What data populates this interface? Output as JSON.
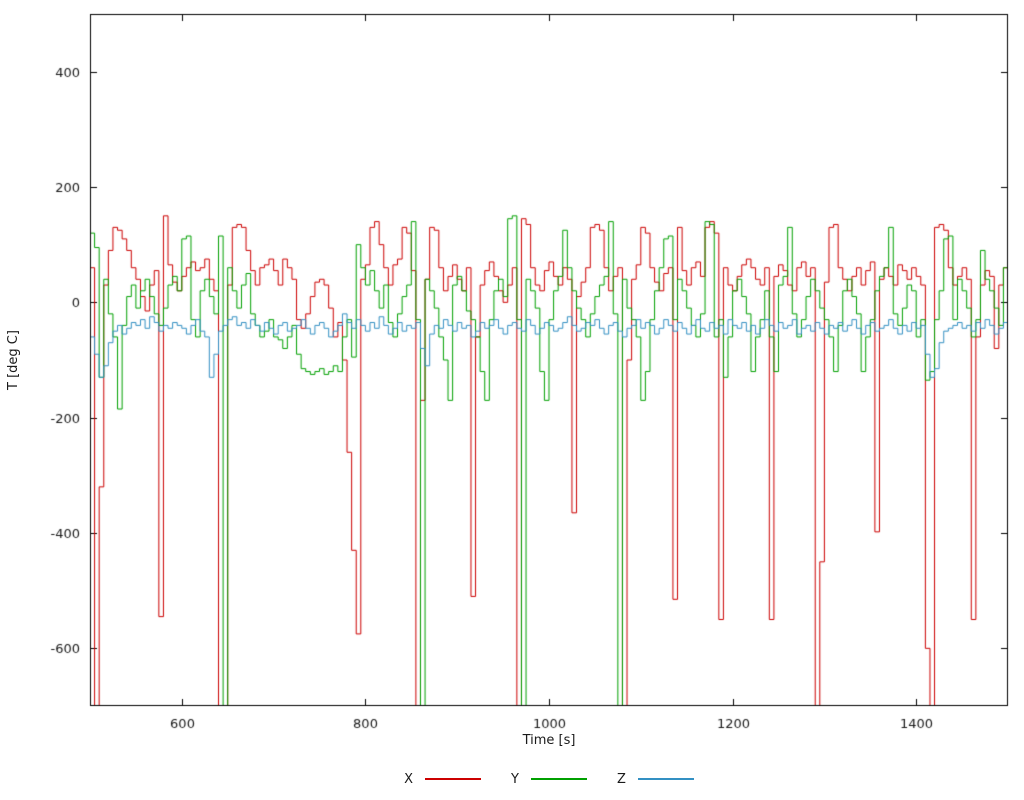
{
  "chart": {
    "xlabel": "Time [s]",
    "ylabel": "T [deg C]",
    "legend": [
      {
        "label": "X",
        "color": "#cc0000"
      },
      {
        "label": "Y",
        "color": "#00a000"
      },
      {
        "label": "Z",
        "color": "#3390c3"
      }
    ],
    "background": "#ffffff",
    "frame_color": "#000000",
    "text_color": "#1a1a1a"
  },
  "chart_data": {
    "type": "line",
    "style": "steps",
    "title": "",
    "xlabel": "Time [s]",
    "ylabel": "T [deg C]",
    "xlim": [
      500,
      1500
    ],
    "ylim": [
      -700,
      500
    ],
    "x_ticks": [
      600,
      800,
      1000,
      1200,
      1400
    ],
    "y_ticks": [
      -600,
      -400,
      -200,
      0,
      200,
      400
    ],
    "grid": false,
    "legend_position": "bottom-center",
    "x": {
      "start": 500,
      "step": 5,
      "count": 201
    },
    "series": [
      {
        "name": "X",
        "color": "#cc0000",
        "values": [
          60,
          -720,
          -320,
          30,
          90,
          130,
          125,
          110,
          90,
          60,
          40,
          10,
          -15,
          30,
          55,
          -545,
          150,
          65,
          35,
          20,
          45,
          60,
          70,
          55,
          60,
          75,
          40,
          20,
          -720,
          -720,
          30,
          130,
          135,
          130,
          90,
          55,
          30,
          60,
          65,
          75,
          55,
          30,
          75,
          60,
          40,
          -30,
          -45,
          -20,
          10,
          35,
          40,
          30,
          -10,
          -60,
          -35,
          -100,
          -260,
          -430,
          -575,
          40,
          65,
          130,
          140,
          100,
          60,
          30,
          65,
          75,
          130,
          120,
          55,
          -720,
          -170,
          40,
          130,
          125,
          60,
          20,
          45,
          65,
          40,
          20,
          60,
          -510,
          -60,
          30,
          55,
          70,
          45,
          20,
          0,
          30,
          60,
          -720,
          145,
          135,
          60,
          30,
          20,
          55,
          70,
          45,
          30,
          60,
          40,
          -365,
          10,
          35,
          60,
          130,
          135,
          125,
          60,
          20,
          45,
          60,
          -720,
          -100,
          40,
          65,
          130,
          120,
          60,
          35,
          20,
          50,
          60,
          -515,
          130,
          55,
          30,
          60,
          70,
          45,
          130,
          140,
          120,
          -550,
          60,
          30,
          20,
          45,
          65,
          75,
          60,
          40,
          30,
          60,
          -550,
          45,
          65,
          55,
          30,
          20,
          60,
          70,
          45,
          60,
          -720,
          -450,
          35,
          130,
          135,
          60,
          40,
          20,
          45,
          60,
          30,
          55,
          70,
          -398,
          40,
          60,
          45,
          30,
          65,
          55,
          40,
          60,
          45,
          30,
          -600,
          -720,
          130,
          135,
          125,
          60,
          30,
          45,
          60,
          40,
          -550,
          -60,
          30,
          55,
          45,
          -80,
          30,
          60,
          75
        ]
      },
      {
        "name": "Y",
        "color": "#00a000",
        "values": [
          120,
          95,
          -130,
          40,
          -20,
          -60,
          -185,
          -40,
          10,
          30,
          -10,
          20,
          40,
          10,
          -20,
          -40,
          -10,
          30,
          45,
          20,
          110,
          115,
          -30,
          -60,
          20,
          40,
          10,
          -20,
          115,
          -720,
          60,
          20,
          -10,
          30,
          50,
          -20,
          -40,
          -60,
          -50,
          -30,
          -60,
          -65,
          -80,
          -60,
          -40,
          -90,
          -115,
          -120,
          -125,
          -120,
          -115,
          -125,
          -120,
          -110,
          -120,
          -60,
          -30,
          -95,
          100,
          60,
          30,
          55,
          20,
          -10,
          30,
          -35,
          -60,
          -20,
          10,
          30,
          140,
          -30,
          -720,
          40,
          20,
          -10,
          -60,
          -100,
          -170,
          30,
          45,
          20,
          -15,
          -30,
          -60,
          -120,
          -170,
          -30,
          20,
          40,
          10,
          145,
          150,
          -30,
          -720,
          40,
          20,
          -10,
          -120,
          -170,
          -30,
          20,
          45,
          125,
          60,
          20,
          -10,
          -30,
          -60,
          -20,
          10,
          30,
          45,
          140,
          -20,
          -720,
          40,
          -10,
          -30,
          -60,
          -170,
          -120,
          -30,
          20,
          60,
          110,
          115,
          -30,
          40,
          20,
          -10,
          -40,
          -60,
          -20,
          140,
          135,
          -60,
          -30,
          -130,
          -60,
          20,
          40,
          10,
          -20,
          -120,
          -60,
          -30,
          20,
          -60,
          -120,
          30,
          45,
          130,
          -20,
          -60,
          -30,
          10,
          40,
          20,
          -10,
          -30,
          -60,
          -120,
          -40,
          20,
          40,
          10,
          -20,
          -120,
          -60,
          -30,
          20,
          45,
          60,
          130,
          -20,
          -40,
          -10,
          30,
          20,
          -60,
          -30,
          -135,
          -120,
          -30,
          20,
          110,
          115,
          -30,
          40,
          20,
          -10,
          -60,
          -30,
          90,
          40,
          20,
          -10,
          -40,
          60,
          75
        ]
      },
      {
        "name": "Z",
        "color": "#3390c3",
        "values": [
          -60,
          -90,
          -130,
          -110,
          -70,
          -50,
          -40,
          -55,
          -45,
          -35,
          -40,
          -30,
          -45,
          -25,
          -35,
          -50,
          -40,
          -45,
          -35,
          -40,
          -45,
          -55,
          -40,
          -30,
          -50,
          -60,
          -130,
          -90,
          -50,
          -40,
          -30,
          -25,
          -40,
          -35,
          -45,
          -30,
          -40,
          -50,
          -35,
          -45,
          -55,
          -40,
          -35,
          -50,
          -45,
          -40,
          -30,
          -45,
          -55,
          -40,
          -35,
          -45,
          -60,
          -50,
          -40,
          -20,
          -35,
          -45,
          -30,
          -40,
          -50,
          -35,
          -45,
          -25,
          -40,
          -55,
          -45,
          -35,
          -50,
          -40,
          -45,
          -35,
          -80,
          -110,
          -55,
          -40,
          -45,
          -30,
          -40,
          -50,
          -35,
          -45,
          -40,
          -60,
          -50,
          -35,
          -45,
          -40,
          -30,
          -45,
          -55,
          -40,
          -35,
          -45,
          -50,
          -30,
          -40,
          -55,
          -45,
          -35,
          -40,
          -50,
          -45,
          -35,
          -25,
          -40,
          -50,
          -45,
          -35,
          -40,
          -30,
          -45,
          -55,
          -40,
          -35,
          -50,
          -60,
          -45,
          -40,
          -30,
          -45,
          -35,
          -40,
          -55,
          -45,
          -30,
          -40,
          -50,
          -35,
          -45,
          -55,
          -40,
          -30,
          -45,
          -50,
          -35,
          -45,
          -40,
          -55,
          -30,
          -40,
          -45,
          -35,
          -50,
          -40,
          -55,
          -45,
          -30,
          -40,
          -50,
          -35,
          -45,
          -40,
          -30,
          -55,
          -45,
          -40,
          -50,
          -35,
          -45,
          -55,
          -40,
          -45,
          -35,
          -50,
          -40,
          -30,
          -45,
          -55,
          -40,
          -35,
          -50,
          -45,
          -40,
          -30,
          -45,
          -55,
          -40,
          -50,
          -35,
          -45,
          -40,
          -90,
          -130,
          -115,
          -70,
          -50,
          -45,
          -40,
          -35,
          -45,
          -40,
          -50,
          -35,
          -45,
          -30,
          -40,
          -55,
          -45,
          -35,
          -40
        ]
      }
    ]
  }
}
